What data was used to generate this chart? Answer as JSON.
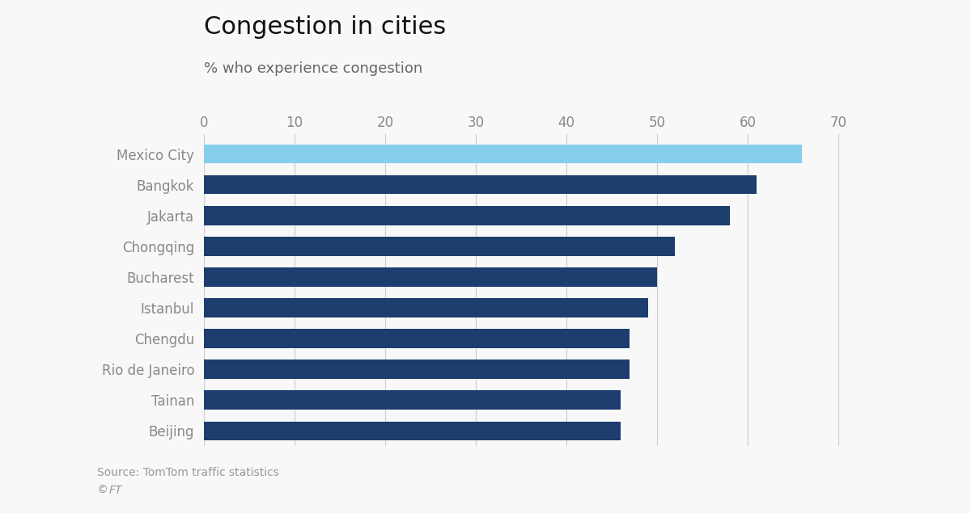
{
  "title": "Congestion in cities",
  "subtitle": "% who experience congestion",
  "source_line1": "Source: TomTom traffic statistics",
  "source_line2": "© FT",
  "cities": [
    "Mexico City",
    "Bangkok",
    "Jakarta",
    "Chongqing",
    "Bucharest",
    "Istanbul",
    "Chengdu",
    "Rio de Janeiro",
    "Tainan",
    "Beijing"
  ],
  "values": [
    66,
    61,
    58,
    52,
    50,
    49,
    47,
    47,
    46,
    46
  ],
  "bar_colors": [
    "#87CEEB",
    "#1C3D6E",
    "#1C3D6E",
    "#1C3D6E",
    "#1C3D6E",
    "#1C3D6E",
    "#1C3D6E",
    "#1C3D6E",
    "#1C3D6E",
    "#1C3D6E"
  ],
  "background_color": "#F8F8F8",
  "plot_bg_color": "#F8F8F8",
  "xlim": [
    0,
    75
  ],
  "xticks": [
    0,
    10,
    20,
    30,
    40,
    50,
    60,
    70
  ],
  "grid_color": "#CCCCCC",
  "title_fontsize": 22,
  "subtitle_fontsize": 13,
  "label_fontsize": 12,
  "tick_fontsize": 12,
  "source_fontsize": 10,
  "label_color": "#888888",
  "title_color": "#111111",
  "subtitle_color": "#666666",
  "source_color": "#999999"
}
